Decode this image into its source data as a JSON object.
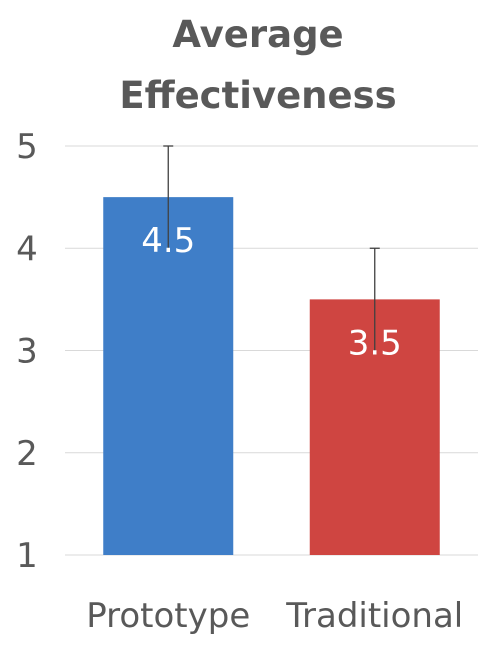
{
  "chart_data": {
    "type": "bar",
    "title": "Average Effectiveness",
    "title_lines": [
      "Average",
      "Effectiveness"
    ],
    "categories": [
      "Prototype",
      "Traditional"
    ],
    "values": [
      4.5,
      3.5
    ],
    "data_labels": [
      "4.5",
      "3.5"
    ],
    "error_upper": [
      5,
      4
    ],
    "colors": [
      "#3f7ec8",
      "#cf4541"
    ],
    "ylim": [
      1,
      5
    ],
    "yticks": [
      "1",
      "2",
      "3",
      "4",
      "5"
    ],
    "grid": true,
    "legend": "none",
    "xlabel": "",
    "ylabel": ""
  }
}
